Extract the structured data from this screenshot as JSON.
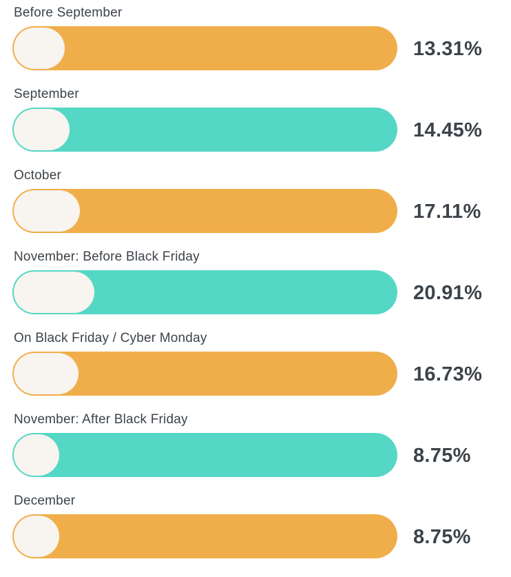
{
  "chart_data": {
    "type": "bar",
    "orientation": "horizontal",
    "categories": [
      "Before September",
      "September",
      "October",
      "November: Before Black Friday",
      "On Black Friday / Cyber Monday",
      "November: After Black Friday",
      "December"
    ],
    "values": [
      13.31,
      14.45,
      17.11,
      20.91,
      16.73,
      8.75,
      8.75
    ],
    "value_labels": [
      "13.31%",
      "14.45%",
      "17.11%",
      "20.91%",
      "16.73%",
      "8.75%",
      "8.75%"
    ],
    "value_range": [
      0,
      100
    ],
    "encoding": "full-width pill per category; leading cream bubble width proportional to value",
    "legend": false,
    "grid": false,
    "axes_visible": false,
    "colors": {
      "bar_alternate": [
        "#F0AE4B",
        "#55D7C6"
      ],
      "bubble": "#F8F4EF",
      "text": "#3C434A",
      "background": "#FFFFFF"
    }
  }
}
